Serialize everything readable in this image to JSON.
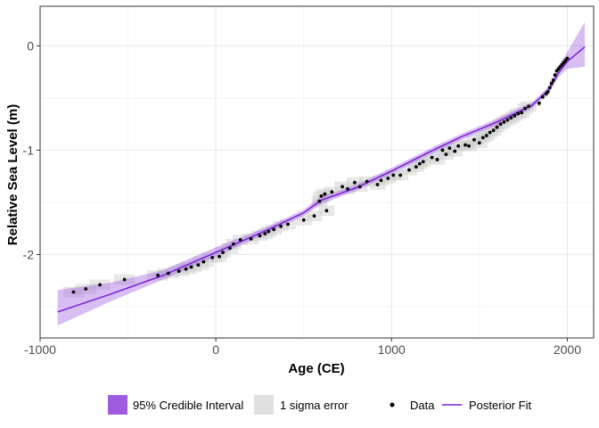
{
  "chart_data": {
    "type": "line",
    "xlabel": "Age (CE)",
    "ylabel": "Relative Sea Level (m)",
    "xlim": [
      -1000,
      2150
    ],
    "ylim": [
      -2.8,
      0.38
    ],
    "x_ticks": [
      -1000,
      0,
      1000,
      2000
    ],
    "x_tick_labels": [
      "-1000",
      "0",
      "1000",
      "2000"
    ],
    "y_ticks": [
      -2,
      -1,
      0
    ],
    "y_tick_labels": [
      "-2",
      "-1",
      "0"
    ],
    "grid": true,
    "legend_position": "bottom",
    "colors": {
      "fit_line": "#7a1fd6",
      "credible_interval": "#a05ce0",
      "sigma_error": "#d9d9d9",
      "data_points": "#000000"
    },
    "legend": [
      {
        "label": "95% Credible Interval",
        "kind": "fill",
        "color": "#a05ce0"
      },
      {
        "label": "1 sigma error",
        "kind": "fill",
        "color": "#e0e0e0"
      },
      {
        "label": "Data",
        "kind": "point",
        "color": "#000000"
      },
      {
        "label": "Posterior Fit",
        "kind": "line",
        "color": "#7a1fd6"
      }
    ],
    "posterior_fit": {
      "name": "Posterior Fit",
      "x": [
        -900,
        -600,
        -300,
        0,
        300,
        500,
        600,
        700,
        800,
        1000,
        1200,
        1400,
        1600,
        1800,
        1900,
        1950,
        2000,
        2100
      ],
      "y": [
        -2.55,
        -2.38,
        -2.2,
        -1.98,
        -1.76,
        -1.6,
        -1.48,
        -1.42,
        -1.36,
        -1.2,
        -1.03,
        -0.87,
        -0.73,
        -0.57,
        -0.41,
        -0.26,
        -0.15,
        -0.01
      ]
    },
    "credible_interval": {
      "name": "95% Credible Interval",
      "x": [
        -900,
        -600,
        -300,
        0,
        300,
        500,
        600,
        700,
        800,
        1000,
        1200,
        1400,
        1600,
        1800,
        1900,
        1950,
        2000,
        2100
      ],
      "lower": [
        -2.68,
        -2.45,
        -2.24,
        -2.02,
        -1.79,
        -1.63,
        -1.52,
        -1.45,
        -1.39,
        -1.23,
        -1.06,
        -0.9,
        -0.76,
        -0.6,
        -0.44,
        -0.3,
        -0.22,
        -0.2
      ],
      "upper": [
        -2.34,
        -2.27,
        -2.15,
        -1.93,
        -1.73,
        -1.57,
        -1.44,
        -1.39,
        -1.33,
        -1.17,
        -1.0,
        -0.84,
        -0.7,
        -0.54,
        -0.38,
        -0.2,
        -0.06,
        0.23
      ]
    },
    "observations": {
      "name": "Data",
      "x": [
        -810,
        -740,
        -660,
        -520,
        -330,
        -270,
        -210,
        -170,
        -140,
        -100,
        -70,
        -20,
        20,
        40,
        80,
        100,
        140,
        200,
        250,
        280,
        300,
        330,
        370,
        410,
        500,
        560,
        590,
        600,
        620,
        630,
        660,
        720,
        750,
        790,
        820,
        860,
        920,
        940,
        980,
        1010,
        1050,
        1100,
        1140,
        1160,
        1180,
        1230,
        1260,
        1290,
        1310,
        1330,
        1360,
        1380,
        1420,
        1440,
        1470,
        1500,
        1520,
        1540,
        1560,
        1580,
        1600,
        1620,
        1640,
        1660,
        1680,
        1700,
        1720,
        1740,
        1760,
        1780,
        1840,
        1860,
        1880,
        1890,
        1900,
        1910,
        1920,
        1930,
        1940,
        1950,
        1960,
        1970,
        1980,
        1990,
        2000
      ],
      "y": [
        -2.36,
        -2.33,
        -2.29,
        -2.24,
        -2.2,
        -2.18,
        -2.16,
        -2.14,
        -2.12,
        -2.1,
        -2.07,
        -2.03,
        -2.02,
        -1.98,
        -1.94,
        -1.9,
        -1.86,
        -1.85,
        -1.82,
        -1.8,
        -1.78,
        -1.76,
        -1.73,
        -1.71,
        -1.67,
        -1.63,
        -1.49,
        -1.44,
        -1.42,
        -1.58,
        -1.4,
        -1.35,
        -1.37,
        -1.31,
        -1.35,
        -1.3,
        -1.33,
        -1.29,
        -1.27,
        -1.24,
        -1.24,
        -1.19,
        -1.16,
        -1.13,
        -1.11,
        -1.07,
        -1.09,
        -1.0,
        -1.04,
        -0.98,
        -1.01,
        -0.96,
        -0.95,
        -0.96,
        -0.9,
        -0.93,
        -0.88,
        -0.86,
        -0.83,
        -0.81,
        -0.78,
        -0.75,
        -0.73,
        -0.71,
        -0.69,
        -0.67,
        -0.65,
        -0.64,
        -0.6,
        -0.58,
        -0.55,
        -0.49,
        -0.46,
        -0.44,
        -0.4,
        -0.36,
        -0.33,
        -0.28,
        -0.24,
        -0.22,
        -0.2,
        -0.18,
        -0.16,
        -0.14,
        -0.12
      ]
    }
  }
}
